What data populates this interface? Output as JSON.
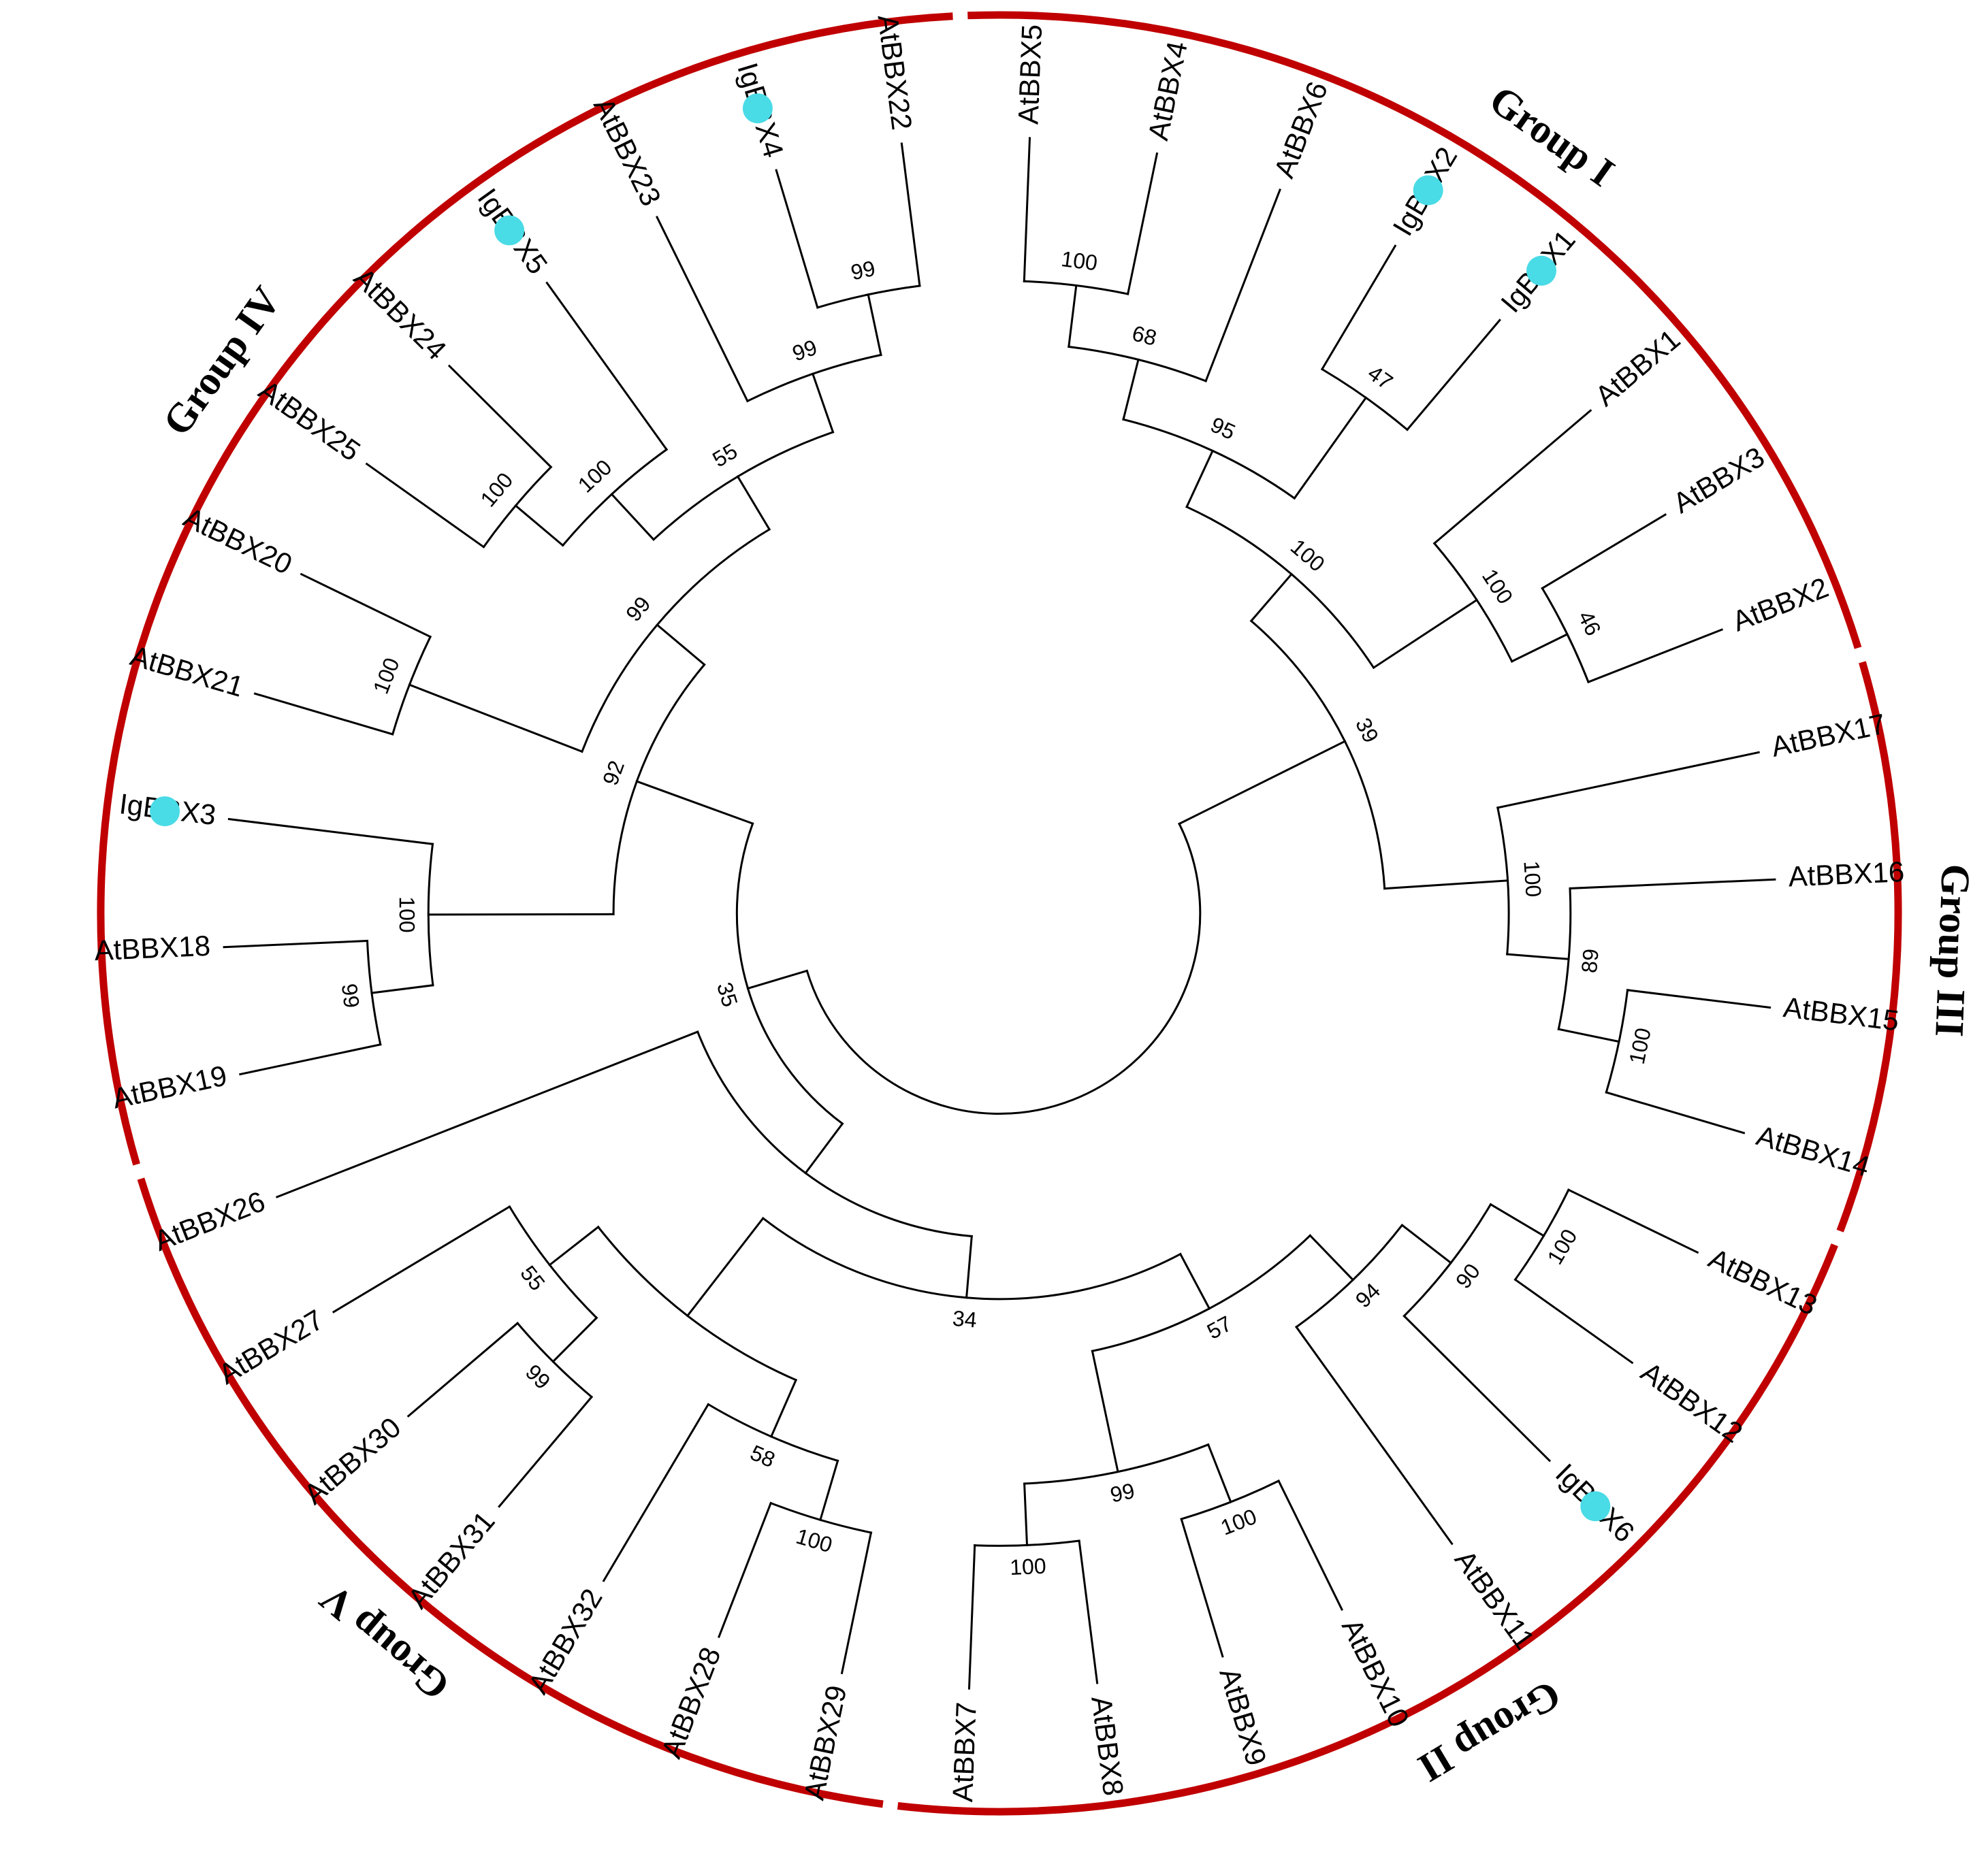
{
  "figure": {
    "marker_color": "#49dbe6",
    "group_ring_color": "#c00000"
  },
  "leaves": [
    {
      "id": "AtBBX5",
      "label": "AtBBX5",
      "marked": false
    },
    {
      "id": "AtBBX4",
      "label": "AtBBX4",
      "marked": false
    },
    {
      "id": "AtBBX6",
      "label": "AtBBX6",
      "marked": false
    },
    {
      "id": "IgBBX2",
      "label": "IgBBX2",
      "marked": true
    },
    {
      "id": "IgBBX1",
      "label": "IgBBX1",
      "marked": true
    },
    {
      "id": "AtBBX1",
      "label": "AtBBX1",
      "marked": false
    },
    {
      "id": "AtBBX3",
      "label": "AtBBX3",
      "marked": false
    },
    {
      "id": "AtBBX2",
      "label": "AtBBX2",
      "marked": false
    },
    {
      "id": "AtBBX17",
      "label": "AtBBX17",
      "marked": false
    },
    {
      "id": "AtBBX16",
      "label": "AtBBX16",
      "marked": false
    },
    {
      "id": "AtBBX15",
      "label": "AtBBX15",
      "marked": false
    },
    {
      "id": "AtBBX14",
      "label": "AtBBX14",
      "marked": false
    },
    {
      "id": "AtBBX13",
      "label": "AtBBX13",
      "marked": false
    },
    {
      "id": "AtBBX12",
      "label": "AtBBX12",
      "marked": false
    },
    {
      "id": "IgBBX6",
      "label": "IgBBX6",
      "marked": true
    },
    {
      "id": "AtBBX11",
      "label": "AtBBX11",
      "marked": false
    },
    {
      "id": "AtBBX10",
      "label": "AtBBX10",
      "marked": false
    },
    {
      "id": "AtBBX9",
      "label": "AtBBX9",
      "marked": false
    },
    {
      "id": "AtBBX8",
      "label": "AtBBX8",
      "marked": false
    },
    {
      "id": "AtBBX7",
      "label": "AtBBX7",
      "marked": false
    },
    {
      "id": "AtBBX29",
      "label": "AtBBX29",
      "marked": false
    },
    {
      "id": "AtBBX28",
      "label": "AtBBX28",
      "marked": false
    },
    {
      "id": "AtBBX32",
      "label": "AtBBX32",
      "marked": false
    },
    {
      "id": "AtBBX31",
      "label": "AtBBX31",
      "marked": false
    },
    {
      "id": "AtBBX30",
      "label": "AtBBX30",
      "marked": false
    },
    {
      "id": "AtBBX27",
      "label": "AtBBX27",
      "marked": false
    },
    {
      "id": "AtBBX26",
      "label": "AtBBX26",
      "marked": false
    },
    {
      "id": "AtBBX19",
      "label": "AtBBX19",
      "marked": false
    },
    {
      "id": "AtBBX18",
      "label": "AtBBX18",
      "marked": false
    },
    {
      "id": "IgBBX3",
      "label": "IgBBX3",
      "marked": true
    },
    {
      "id": "AtBBX21",
      "label": "AtBBX21",
      "marked": false
    },
    {
      "id": "AtBBX20",
      "label": "AtBBX20",
      "marked": false
    },
    {
      "id": "AtBBX25",
      "label": "AtBBX25",
      "marked": false
    },
    {
      "id": "AtBBX24",
      "label": "AtBBX24",
      "marked": false
    },
    {
      "id": "IgBBX5",
      "label": "IgBBX5",
      "marked": true
    },
    {
      "id": "AtBBX23",
      "label": "AtBBX23",
      "marked": false
    },
    {
      "id": "IgBBX4",
      "label": "IgBBX4",
      "marked": true
    },
    {
      "id": "AtBBX22",
      "label": "AtBBX22",
      "marked": false
    }
  ],
  "clades": [
    {
      "id": "c1",
      "children": [
        "AtBBX5",
        "AtBBX4"
      ],
      "bootstrap": "100"
    },
    {
      "id": "c2",
      "children": [
        "c1",
        "AtBBX6"
      ],
      "bootstrap": "68"
    },
    {
      "id": "c3",
      "children": [
        "IgBBX2",
        "IgBBX1"
      ],
      "bootstrap": "47"
    },
    {
      "id": "c4",
      "children": [
        "c2",
        "c3"
      ],
      "bootstrap": "95"
    },
    {
      "id": "c5",
      "children": [
        "AtBBX3",
        "AtBBX2"
      ],
      "bootstrap": "46"
    },
    {
      "id": "c6",
      "children": [
        "AtBBX1",
        "c5"
      ],
      "bootstrap": "100"
    },
    {
      "id": "c7",
      "children": [
        "c4",
        "c6"
      ],
      "bootstrap": "100"
    },
    {
      "id": "c8",
      "children": [
        "AtBBX15",
        "AtBBX14"
      ],
      "bootstrap": "100"
    },
    {
      "id": "c9",
      "children": [
        "AtBBX16",
        "c8"
      ],
      "bootstrap": "89"
    },
    {
      "id": "c10",
      "children": [
        "AtBBX17",
        "c9"
      ],
      "bootstrap": "100"
    },
    {
      "id": "c11",
      "children": [
        "c7",
        "c10"
      ],
      "bootstrap": "39"
    },
    {
      "id": "c12",
      "children": [
        "AtBBX13",
        "AtBBX12"
      ],
      "bootstrap": "100"
    },
    {
      "id": "c13",
      "children": [
        "c12",
        "IgBBX6"
      ],
      "bootstrap": "90"
    },
    {
      "id": "c14",
      "children": [
        "c13",
        "AtBBX11"
      ],
      "bootstrap": "94"
    },
    {
      "id": "c15",
      "children": [
        "AtBBX10",
        "AtBBX9"
      ],
      "bootstrap": "100"
    },
    {
      "id": "c16",
      "children": [
        "AtBBX8",
        "AtBBX7"
      ],
      "bootstrap": "100"
    },
    {
      "id": "c17",
      "children": [
        "c15",
        "c16"
      ],
      "bootstrap": "99"
    },
    {
      "id": "c18",
      "children": [
        "c14",
        "c17"
      ],
      "bootstrap": "57"
    },
    {
      "id": "c19",
      "children": [
        "AtBBX29",
        "AtBBX28"
      ],
      "bootstrap": "100"
    },
    {
      "id": "c20",
      "children": [
        "c19",
        "AtBBX32"
      ],
      "bootstrap": "58"
    },
    {
      "id": "c21",
      "children": [
        "AtBBX31",
        "AtBBX30"
      ],
      "bootstrap": "99"
    },
    {
      "id": "c22",
      "children": [
        "c21",
        "AtBBX27"
      ],
      "bootstrap": "55"
    },
    {
      "id": "c23",
      "children": [
        "c20",
        "c22"
      ],
      "bootstrap": ""
    },
    {
      "id": "c24",
      "children": [
        "c18",
        "c23"
      ],
      "bootstrap": "34"
    },
    {
      "id": "c25",
      "children": [
        "c24",
        "AtBBX26"
      ],
      "bootstrap": ""
    },
    {
      "id": "c26",
      "children": [
        "AtBBX19",
        "AtBBX18"
      ],
      "bootstrap": "99"
    },
    {
      "id": "c27",
      "children": [
        "c26",
        "IgBBX3"
      ],
      "bootstrap": "100"
    },
    {
      "id": "c28",
      "children": [
        "AtBBX21",
        "AtBBX20"
      ],
      "bootstrap": "100"
    },
    {
      "id": "c29",
      "children": [
        "AtBBX25",
        "AtBBX24"
      ],
      "bootstrap": "100"
    },
    {
      "id": "c30",
      "children": [
        "c29",
        "IgBBX5"
      ],
      "bootstrap": "100"
    },
    {
      "id": "c31",
      "children": [
        "IgBBX4",
        "AtBBX22"
      ],
      "bootstrap": "99"
    },
    {
      "id": "c32",
      "children": [
        "AtBBX23",
        "c31"
      ],
      "bootstrap": "99"
    },
    {
      "id": "c33",
      "children": [
        "c30",
        "c32"
      ],
      "bootstrap": "55"
    },
    {
      "id": "c34",
      "children": [
        "c28",
        "c33"
      ],
      "bootstrap": "99"
    },
    {
      "id": "c35",
      "children": [
        "c27",
        "c34"
      ],
      "bootstrap": "92"
    },
    {
      "id": "c36",
      "children": [
        "c25",
        "c35"
      ],
      "bootstrap": "35"
    },
    {
      "id": "root",
      "children": [
        "c11",
        "c36"
      ],
      "bootstrap": ""
    }
  ],
  "groups": [
    {
      "id": "group-1",
      "label": "Group I",
      "first": "AtBBX5",
      "last": "AtBBX2"
    },
    {
      "id": "group-3",
      "label": "Group III",
      "first": "AtBBX17",
      "last": "AtBBX14"
    },
    {
      "id": "group-2",
      "label": "Group II",
      "first": "AtBBX13",
      "last": "AtBBX7"
    },
    {
      "id": "group-5",
      "label": "Group V",
      "first": "AtBBX29",
      "last": "AtBBX26"
    },
    {
      "id": "group-4",
      "label": "Group IV",
      "first": "AtBBX19",
      "last": "AtBBX22"
    }
  ]
}
